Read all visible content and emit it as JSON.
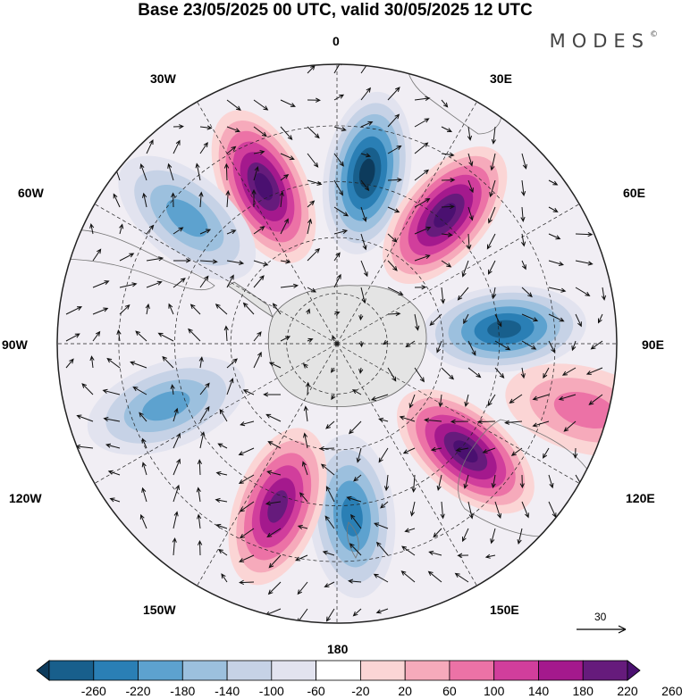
{
  "title": "Base 23/05/2025 00 UTC, valid 30/05/2025 12 UTC",
  "brand": "MODES",
  "brand_mark": "©",
  "longitude_labels": {
    "top": "0",
    "upper_left": "30W",
    "upper_right": "30E",
    "mid_upper_left": "60W",
    "mid_upper_right": "60E",
    "left": "90W",
    "right": "90E",
    "mid_lower_left": "120W",
    "mid_lower_right": "120E",
    "lower_left": "150W",
    "lower_right": "150E",
    "bottom": "180"
  },
  "reference_vector": {
    "label": "30"
  },
  "colorbar": {
    "labels": [
      "-260",
      "-220",
      "-180",
      "-140",
      "-100",
      "-60",
      "-20",
      "20",
      "60",
      "100",
      "140",
      "180",
      "220",
      "260"
    ],
    "colors": [
      "#0d3b5c",
      "#185f8c",
      "#2a7fb5",
      "#5da2cf",
      "#9cc0de",
      "#c6d2e6",
      "#e2e3ef",
      "#ffffff",
      "#fbd5d5",
      "#f6aabb",
      "#ec72a6",
      "#d13e9c",
      "#a4198d",
      "#661b7c",
      "#4a1070"
    ]
  },
  "anomalies": [
    {
      "kind": "neg",
      "lon": 10,
      "r": 0.62,
      "level": 6
    },
    {
      "kind": "pos",
      "lon": -25,
      "r": 0.62,
      "level": 6
    },
    {
      "kind": "pos",
      "lon": 40,
      "r": 0.6,
      "level": 6
    },
    {
      "kind": "neg",
      "lon": 85,
      "r": 0.6,
      "level": 5
    },
    {
      "kind": "pos",
      "lon": 130,
      "r": 0.6,
      "level": 6
    },
    {
      "kind": "neg",
      "lon": 175,
      "r": 0.62,
      "level": 4
    },
    {
      "kind": "pos",
      "lon": -160,
      "r": 0.62,
      "level": 5
    },
    {
      "kind": "neg",
      "lon": -110,
      "r": 0.65,
      "level": 3
    },
    {
      "kind": "neg",
      "lon": -50,
      "r": 0.7,
      "level": 3
    },
    {
      "kind": "pos",
      "lon": 105,
      "r": 0.92,
      "level": 2
    }
  ]
}
